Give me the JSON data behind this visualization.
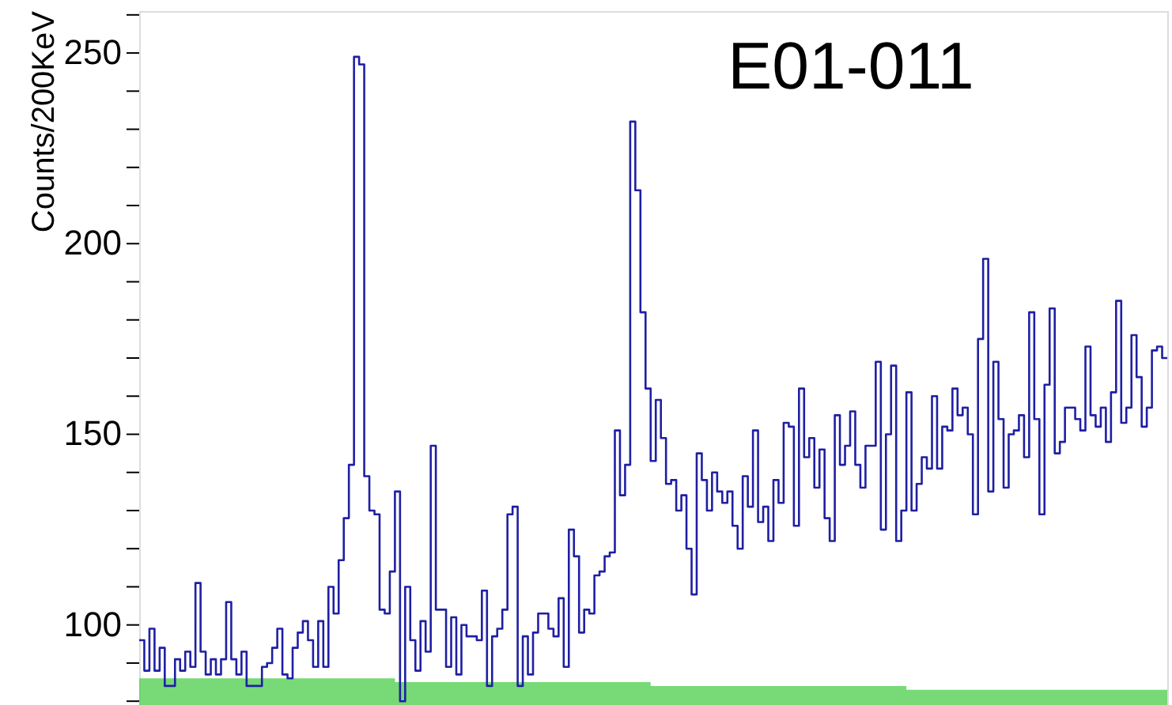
{
  "chart_data": {
    "type": "step",
    "ylabel": "Counts/200KeV",
    "annotations": [
      "E01-011"
    ],
    "categories": [
      null,
      null,
      null,
      null,
      null,
      null,
      null,
      null,
      null,
      null,
      null,
      null,
      null,
      null,
      null,
      null,
      null,
      null,
      null,
      null,
      null,
      null,
      null,
      null,
      null,
      null,
      null,
      null,
      null,
      null,
      null,
      null,
      null,
      null,
      null,
      null,
      null,
      null,
      null,
      null,
      null,
      null,
      null,
      null,
      null,
      null,
      null,
      null,
      null,
      null,
      null,
      null,
      null,
      null,
      null,
      null,
      null,
      null,
      null,
      null,
      null,
      null,
      null,
      null,
      null,
      null,
      null,
      null,
      null,
      null,
      null,
      null,
      null,
      null,
      null,
      null,
      null,
      null,
      null,
      null,
      null,
      null,
      null,
      null,
      null,
      null,
      null,
      null,
      null,
      null,
      null,
      null,
      null,
      null,
      null,
      null,
      null,
      null,
      null,
      null,
      null,
      null,
      null,
      null,
      null,
      null,
      null,
      null,
      null,
      null,
      null,
      null,
      null,
      null,
      null,
      null,
      null,
      null,
      null,
      null,
      null,
      null,
      null,
      null,
      null,
      null,
      null,
      null,
      null,
      null,
      null,
      null,
      null,
      null,
      null,
      null,
      null,
      null,
      null,
      null,
      null,
      null,
      null,
      null,
      null,
      null,
      null,
      null,
      null,
      null,
      null,
      null,
      null,
      null,
      null,
      null,
      null,
      null,
      null,
      null,
      null,
      null,
      null,
      null,
      null,
      null,
      null,
      null,
      null,
      null,
      null,
      null,
      null,
      null,
      null,
      null,
      null,
      null,
      null,
      null,
      null,
      null,
      null,
      null,
      null,
      null,
      null,
      null,
      null,
      null,
      null,
      null,
      null,
      null,
      null,
      null,
      null,
      null,
      null,
      null,
      null
    ],
    "series": [
      {
        "type": "area",
        "color": "#5fd35f",
        "values": [
          86,
          86,
          86,
          86,
          86,
          86,
          86,
          86,
          86,
          86,
          86,
          86,
          86,
          86,
          86,
          86,
          86,
          86,
          86,
          86,
          86,
          86,
          86,
          86,
          86,
          86,
          86,
          86,
          86,
          86,
          86,
          86,
          86,
          86,
          86,
          86,
          86,
          86,
          86,
          86,
          86,
          86,
          86,
          86,
          86,
          86,
          86,
          86,
          86,
          86,
          85,
          85,
          85,
          85,
          85,
          85,
          85,
          85,
          85,
          85,
          85,
          85,
          85,
          85,
          85,
          85,
          85,
          85,
          85,
          85,
          85,
          85,
          85,
          85,
          85,
          85,
          85,
          85,
          85,
          85,
          85,
          85,
          85,
          85,
          85,
          85,
          85,
          85,
          85,
          85,
          85,
          85,
          85,
          85,
          85,
          85,
          85,
          85,
          85,
          85,
          84,
          84,
          84,
          84,
          84,
          84,
          84,
          84,
          84,
          84,
          84,
          84,
          84,
          84,
          84,
          84,
          84,
          84,
          84,
          84,
          84,
          84,
          84,
          84,
          84,
          84,
          84,
          84,
          84,
          84,
          84,
          84,
          84,
          84,
          84,
          84,
          84,
          84,
          84,
          84,
          84,
          84,
          84,
          84,
          84,
          84,
          84,
          84,
          84,
          84,
          83,
          83,
          83,
          83,
          83,
          83,
          83,
          83,
          83,
          83,
          83,
          83,
          83,
          83,
          83,
          83,
          83,
          83,
          83,
          83,
          83,
          83,
          83,
          83,
          83,
          83,
          83,
          83,
          83,
          83,
          83,
          83,
          83,
          83,
          83,
          83,
          83,
          83,
          83,
          83,
          83,
          83,
          83,
          83,
          83,
          83,
          83,
          83,
          83,
          83,
          83
        ]
      },
      {
        "color": "#1f1fa3",
        "values": [
          96,
          88,
          99,
          88,
          94,
          84,
          84,
          91,
          88,
          93,
          89,
          111,
          93,
          87,
          91,
          87,
          91,
          106,
          91,
          87,
          93,
          84,
          84,
          84,
          89,
          90,
          94,
          99,
          87,
          86,
          94,
          98,
          101,
          96,
          89,
          101,
          89,
          110,
          103,
          117,
          128,
          142,
          249,
          247,
          139,
          130,
          129,
          104,
          103,
          114,
          135,
          80,
          110,
          96,
          88,
          101,
          93,
          147,
          104,
          104,
          89,
          102,
          87,
          100,
          97,
          97,
          96,
          109,
          84,
          97,
          99,
          104,
          129,
          131,
          84,
          97,
          87,
          98,
          103,
          103,
          99,
          97,
          107,
          89,
          125,
          118,
          98,
          104,
          103,
          113,
          114,
          118,
          119,
          151,
          134,
          142,
          232,
          214,
          182,
          162,
          143,
          159,
          149,
          137,
          138,
          130,
          134,
          120,
          108,
          145,
          138,
          130,
          140,
          135,
          132,
          135,
          126,
          120,
          139,
          131,
          151,
          127,
          131,
          122,
          138,
          132,
          153,
          152,
          126,
          162,
          144,
          149,
          136,
          146,
          128,
          122,
          155,
          142,
          147,
          156,
          142,
          136,
          147,
          147,
          169,
          125,
          150,
          168,
          122,
          130,
          161,
          130,
          137,
          144,
          141,
          160,
          141,
          152,
          151,
          162,
          155,
          157,
          150,
          129,
          175,
          196,
          135,
          169,
          154,
          136,
          150,
          151,
          155,
          144,
          182,
          154,
          129,
          163,
          183,
          145,
          148,
          157,
          157,
          154,
          151,
          173,
          155,
          152,
          157,
          148,
          161,
          185,
          153,
          157,
          176,
          165,
          152,
          157,
          172,
          173,
          170
        ]
      }
    ],
    "ylim": [
      79,
      261
    ],
    "yticks": [
      {
        "value": 80,
        "label": null
      },
      {
        "value": 90,
        "label": null
      },
      100,
      {
        "value": 110,
        "label": null
      },
      {
        "value": 120,
        "label": null
      },
      {
        "value": 130,
        "label": null
      },
      {
        "value": 140,
        "label": null
      },
      150,
      {
        "value": 160,
        "label": null
      },
      {
        "value": 170,
        "label": null
      },
      {
        "value": 180,
        "label": null
      },
      {
        "value": 190,
        "label": null
      },
      200,
      {
        "value": 210,
        "label": null
      },
      {
        "value": 220,
        "label": null
      },
      {
        "value": 230,
        "label": null
      },
      {
        "value": 240,
        "label": null
      },
      250,
      {
        "value": 260,
        "label": null
      }
    ],
    "tick_labels": "y",
    "grid": false
  }
}
